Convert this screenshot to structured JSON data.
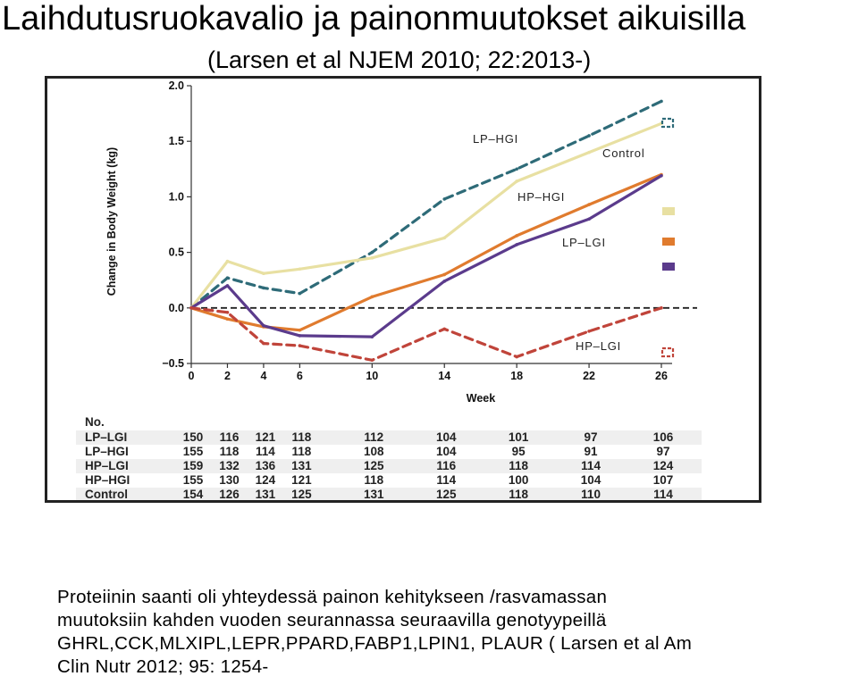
{
  "slide": {
    "title": "Laihdutusruokavalio  ja painonmuutokset aikuisilla",
    "subtitle": "(Larsen et al NJEM 2010; 22:2013-)",
    "body_lines": [
      "Proteiinin saanti  oli yhteydessä painon kehitykseen /rasvamassan",
      "muutoksiin  kahden vuoden seurannassa seuraavilla genotyypeillä",
      "GHRL,CCK,MLXIPL,LEPR,PPARD,FABP1,LPIN1, PLAUR ( Larsen et al  Am",
      "Clin Nutr 2012; 95: 1254-"
    ]
  },
  "chart_data": {
    "type": "line",
    "title": "",
    "xlabel": "Week",
    "ylabel": "Change in Body Weight (kg)",
    "x": [
      0,
      2,
      4,
      6,
      10,
      14,
      18,
      22,
      26
    ],
    "x_ticks": [
      "0",
      "2",
      "4",
      "6",
      "10",
      "14",
      "18",
      "22",
      "26"
    ],
    "y_ticks": [
      "−0.5",
      "0.0",
      "0.5",
      "1.0",
      "1.5",
      "2.0"
    ],
    "xlim": [
      0,
      26
    ],
    "ylim": [
      -0.5,
      2.0
    ],
    "grid": false,
    "series": [
      {
        "name": "LP–HGI",
        "color": "#2e6b78",
        "dash": true,
        "values": [
          0,
          0.27,
          0.18,
          0.13,
          0.5,
          0.98,
          1.25,
          1.55,
          1.86
        ]
      },
      {
        "name": "Control",
        "color": "#e8e0a2",
        "dash": false,
        "values": [
          0,
          0.42,
          0.31,
          0.35,
          0.45,
          0.63,
          1.14,
          1.4,
          1.66
        ]
      },
      {
        "name": "HP–HGI",
        "color": "#e07b2e",
        "dash": false,
        "values": [
          0,
          -0.1,
          -0.17,
          -0.2,
          0.1,
          0.3,
          0.65,
          0.93,
          1.2
        ]
      },
      {
        "name": "LP–LGI",
        "color": "#5b3b8c",
        "dash": false,
        "values": [
          0,
          0.2,
          -0.16,
          -0.25,
          -0.26,
          0.24,
          0.57,
          0.8,
          1.19
        ]
      },
      {
        "name": "HP–LGI",
        "color": "#c0443a",
        "dash": true,
        "values": [
          0,
          -0.04,
          -0.32,
          -0.34,
          -0.47,
          -0.19,
          -0.44,
          -0.21,
          0.0
        ]
      }
    ],
    "reference_line": {
      "y": 0.0,
      "dash": true,
      "color": "#222222"
    },
    "series_labels": [
      {
        "text": "LP–HGI",
        "series": "LP–HGI"
      },
      {
        "text": "Control",
        "series": "Control"
      },
      {
        "text": "HP–HGI",
        "series": "HP–HGI"
      },
      {
        "text": "LP–LGI",
        "series": "LP–LGI"
      },
      {
        "text": "HP–LGI",
        "series": "HP–LGI"
      }
    ],
    "end_markers": [
      {
        "series": "LP–HGI",
        "style": "dashed-square",
        "color": "#2e6b78"
      },
      {
        "series": "Control",
        "style": "filled-square",
        "color": "#e8e0a2"
      },
      {
        "series": "HP–HGI",
        "style": "filled-square",
        "color": "#e07b2e"
      },
      {
        "series": "LP–LGI",
        "style": "filled-square",
        "color": "#5b3b8c"
      },
      {
        "series": "HP–LGI",
        "style": "dashed-square",
        "color": "#c0443a"
      }
    ],
    "table": {
      "header": "No.",
      "rows": [
        {
          "label": "LP–LGI",
          "values": [
            "150",
            "116",
            "121",
            "118",
            "112",
            "104",
            "101",
            "97",
            "106"
          ]
        },
        {
          "label": "LP–HGI",
          "values": [
            "155",
            "118",
            "114",
            "118",
            "108",
            "104",
            "95",
            "91",
            "97"
          ]
        },
        {
          "label": "HP–LGI",
          "values": [
            "159",
            "132",
            "136",
            "131",
            "125",
            "116",
            "118",
            "114",
            "124"
          ]
        },
        {
          "label": "HP–HGI",
          "values": [
            "155",
            "130",
            "124",
            "121",
            "118",
            "114",
            "100",
            "104",
            "107"
          ]
        },
        {
          "label": "Control",
          "values": [
            "154",
            "126",
            "131",
            "125",
            "131",
            "125",
            "118",
            "110",
            "114"
          ]
        }
      ],
      "row_colors": [
        "#efefef",
        "#ffffff"
      ]
    }
  }
}
